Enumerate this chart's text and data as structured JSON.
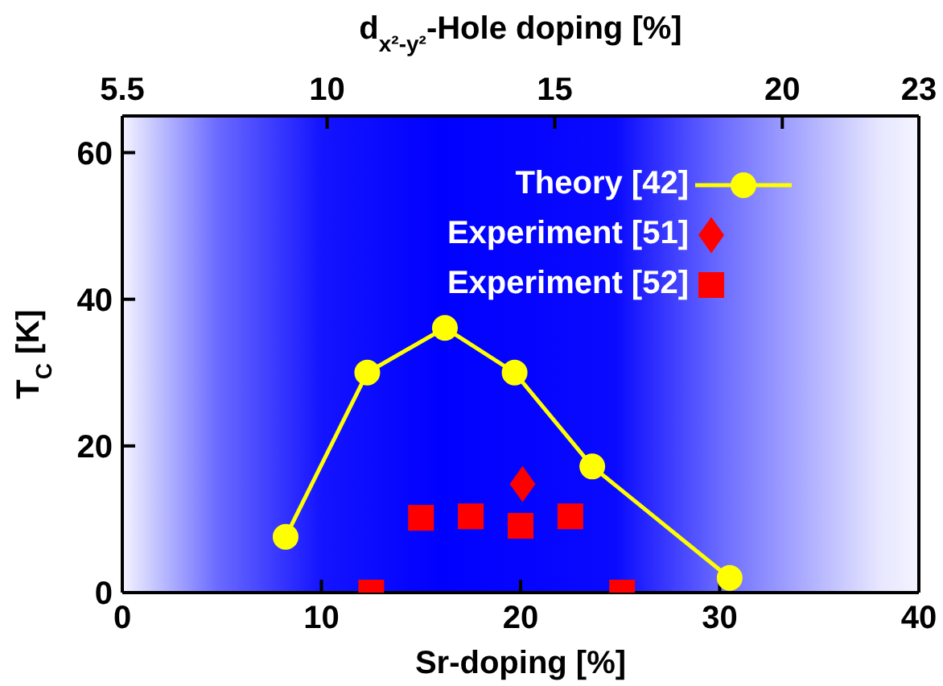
{
  "chart_data": {
    "type": "scatter",
    "xlabel": "Sr-doping [%]",
    "ylabel": "T$_{C}$ [K]",
    "x2label": "d$_{x²-y²}$-Hole doping [%]",
    "xlim": [
      0,
      40
    ],
    "xticks": [
      0,
      10,
      20,
      30,
      40
    ],
    "ylim": [
      0,
      65
    ],
    "yticks": [
      0,
      20,
      40,
      60
    ],
    "x2lim": [
      5.5,
      23
    ],
    "x2ticks": [
      5.5,
      10,
      15,
      20,
      23
    ],
    "legend": "top right",
    "series": [
      {
        "name": "Theory [42]",
        "type": "line",
        "color": "#ffff00",
        "marker": "circle",
        "x": [
          8.2,
          12.3,
          16.2,
          19.7,
          23.6,
          30.5
        ],
        "values": [
          7.6,
          30,
          36.1,
          30,
          17.2,
          2
        ]
      },
      {
        "name": "Experiment [51]",
        "type": "scatter",
        "color": "#ff0000",
        "marker": "diamond",
        "x": [
          20.1
        ],
        "values": [
          14.8
        ]
      },
      {
        "name": "Experiment [52]",
        "type": "scatter",
        "color": "#ff0000",
        "marker": "square",
        "x": [
          12.5,
          15,
          17.5,
          20,
          22.5,
          25.1
        ],
        "values": [
          0,
          10.2,
          10.4,
          9.1,
          10.4,
          0
        ]
      }
    ]
  }
}
